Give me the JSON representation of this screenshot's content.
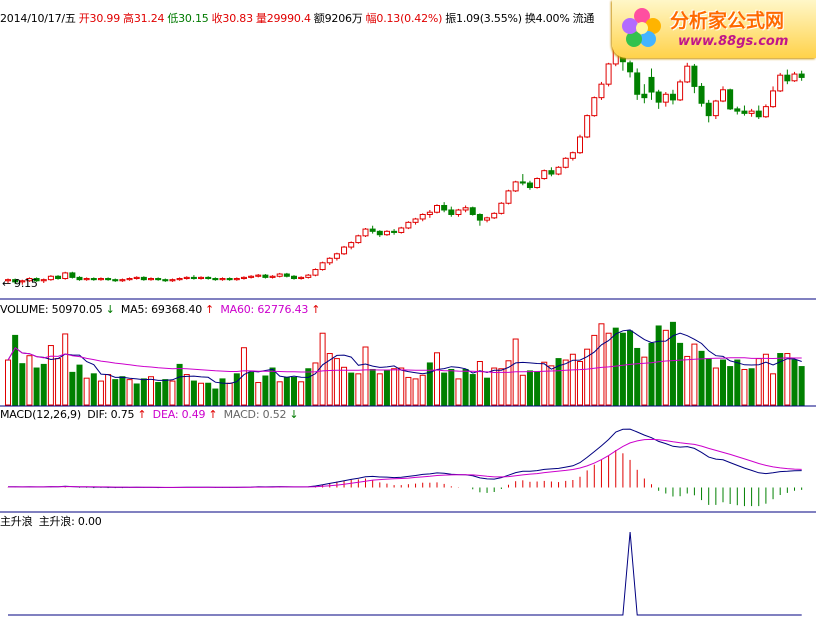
{
  "header": {
    "date": "2014/10/17/五",
    "open": "开30.99",
    "high": "高31.24",
    "low": "低30.15",
    "close": "收30.83",
    "volume": "量29990.4",
    "amount": "额9206万",
    "change": "幅0.13(0.42%)",
    "amplitude": "振1.09(3.55%)",
    "turnover": "换4.00%",
    "float": "流通"
  },
  "volume_header": {
    "vol": "VOLUME: 50970.05",
    "ma5": "MA5: 69368.40",
    "ma60": "MA60: 62776.43"
  },
  "macd_header": {
    "name": "MACD(12,26,9)",
    "dif": "DIF: 0.75",
    "dea": "DEA: 0.49",
    "macd": "MACD: 0.52"
  },
  "indicator_header": {
    "name": "主升浪",
    "value": "主升浪: 0.00"
  },
  "low_marker": "9.15",
  "logo": {
    "title": "分析家公式网",
    "url": "www.88gs.com"
  },
  "colors": {
    "up": "#e00000",
    "down": "#008000",
    "ma5": "#000080",
    "ma60": "#cc00cc",
    "dif": "#000080",
    "dea": "#cc00cc",
    "indicator": "#000080"
  },
  "chart_data": [
    {
      "type": "candlestick",
      "title": "",
      "y_range": [
        8.5,
        32
      ],
      "candles_ohlc": [
        [
          9.5,
          9.7,
          9.3,
          9.6
        ],
        [
          9.6,
          9.7,
          9.2,
          9.4
        ],
        [
          9.4,
          9.6,
          9.15,
          9.5
        ],
        [
          9.5,
          9.8,
          9.4,
          9.7
        ],
        [
          9.7,
          9.8,
          9.4,
          9.5
        ],
        [
          9.5,
          9.7,
          9.3,
          9.6
        ],
        [
          9.6,
          10.0,
          9.5,
          9.9
        ],
        [
          9.9,
          10.0,
          9.6,
          9.7
        ],
        [
          9.7,
          10.3,
          9.6,
          10.2
        ],
        [
          10.2,
          10.3,
          9.7,
          9.8
        ],
        [
          9.8,
          9.9,
          9.5,
          9.6
        ],
        [
          9.6,
          9.8,
          9.5,
          9.7
        ],
        [
          9.7,
          9.8,
          9.5,
          9.6
        ],
        [
          9.6,
          9.8,
          9.5,
          9.7
        ],
        [
          9.7,
          9.8,
          9.5,
          9.6
        ],
        [
          9.6,
          9.7,
          9.4,
          9.5
        ],
        [
          9.5,
          9.7,
          9.4,
          9.6
        ],
        [
          9.6,
          9.8,
          9.5,
          9.7
        ],
        [
          9.7,
          9.9,
          9.6,
          9.8
        ],
        [
          9.8,
          9.9,
          9.5,
          9.6
        ],
        [
          9.6,
          9.8,
          9.5,
          9.7
        ],
        [
          9.7,
          9.8,
          9.5,
          9.6
        ],
        [
          9.6,
          9.7,
          9.4,
          9.5
        ],
        [
          9.5,
          9.7,
          9.4,
          9.6
        ],
        [
          9.6,
          9.8,
          9.5,
          9.7
        ],
        [
          9.7,
          9.9,
          9.6,
          9.8
        ],
        [
          9.8,
          10.0,
          9.6,
          9.7
        ],
        [
          9.7,
          9.9,
          9.6,
          9.8
        ],
        [
          9.8,
          9.9,
          9.6,
          9.7
        ],
        [
          9.7,
          9.8,
          9.5,
          9.6
        ],
        [
          9.6,
          9.8,
          9.5,
          9.7
        ],
        [
          9.7,
          9.8,
          9.5,
          9.6
        ],
        [
          9.6,
          9.8,
          9.5,
          9.7
        ],
        [
          9.7,
          9.9,
          9.6,
          9.8
        ],
        [
          9.8,
          10.0,
          9.7,
          9.9
        ],
        [
          9.9,
          10.1,
          9.8,
          10.0
        ],
        [
          10.0,
          10.1,
          9.7,
          9.8
        ],
        [
          9.8,
          10.0,
          9.7,
          9.9
        ],
        [
          9.9,
          10.2,
          9.8,
          10.1
        ],
        [
          10.1,
          10.2,
          9.8,
          9.9
        ],
        [
          9.9,
          10.0,
          9.6,
          9.7
        ],
        [
          9.7,
          9.9,
          9.6,
          9.8
        ],
        [
          9.8,
          10.1,
          9.7,
          10.0
        ],
        [
          10.0,
          10.6,
          9.9,
          10.5
        ],
        [
          10.5,
          11.2,
          10.4,
          11.1
        ],
        [
          11.1,
          11.6,
          10.9,
          11.5
        ],
        [
          11.5,
          12.0,
          11.3,
          11.9
        ],
        [
          11.9,
          12.6,
          11.8,
          12.5
        ],
        [
          12.5,
          13.0,
          12.3,
          12.9
        ],
        [
          12.9,
          13.6,
          12.8,
          13.5
        ],
        [
          13.5,
          14.2,
          13.4,
          14.1
        ],
        [
          14.1,
          14.4,
          13.7,
          13.9
        ],
        [
          13.9,
          14.0,
          13.4,
          13.6
        ],
        [
          13.6,
          14.0,
          13.5,
          13.9
        ],
        [
          13.9,
          14.1,
          13.6,
          13.8
        ],
        [
          13.8,
          14.3,
          13.7,
          14.2
        ],
        [
          14.2,
          14.8,
          14.1,
          14.7
        ],
        [
          14.7,
          15.1,
          14.5,
          15.0
        ],
        [
          15.0,
          15.5,
          14.8,
          15.4
        ],
        [
          15.4,
          15.8,
          15.1,
          15.6
        ],
        [
          15.6,
          16.3,
          15.5,
          16.2
        ],
        [
          16.2,
          16.5,
          15.6,
          15.8
        ],
        [
          15.8,
          16.1,
          15.2,
          15.4
        ],
        [
          15.4,
          15.9,
          15.2,
          15.8
        ],
        [
          15.8,
          16.2,
          15.6,
          16.0
        ],
        [
          16.0,
          16.1,
          15.3,
          15.4
        ],
        [
          15.4,
          15.5,
          14.4,
          14.9
        ],
        [
          14.9,
          15.2,
          14.7,
          15.1
        ],
        [
          15.1,
          15.6,
          15.0,
          15.5
        ],
        [
          15.5,
          16.5,
          15.4,
          16.4
        ],
        [
          16.4,
          17.6,
          16.3,
          17.5
        ],
        [
          17.5,
          18.4,
          17.4,
          18.3
        ],
        [
          18.3,
          19.0,
          18.0,
          18.2
        ],
        [
          18.2,
          18.4,
          17.6,
          17.8
        ],
        [
          17.8,
          18.7,
          17.7,
          18.6
        ],
        [
          18.6,
          19.4,
          18.5,
          19.3
        ],
        [
          19.3,
          19.6,
          18.8,
          19.0
        ],
        [
          19.0,
          19.7,
          18.9,
          19.6
        ],
        [
          19.6,
          20.5,
          19.5,
          20.4
        ],
        [
          20.4,
          21.0,
          20.2,
          20.9
        ],
        [
          20.9,
          22.5,
          20.8,
          22.3
        ],
        [
          22.3,
          24.3,
          22.2,
          24.2
        ],
        [
          24.2,
          25.9,
          24.1,
          25.8
        ],
        [
          25.8,
          27.2,
          25.6,
          27.0
        ],
        [
          27.0,
          28.9,
          26.8,
          28.8
        ],
        [
          28.8,
          31.4,
          28.6,
          31.2
        ],
        [
          31.2,
          32.0,
          28.2,
          29.0
        ],
        [
          28.9,
          29.1,
          27.6,
          28.1
        ],
        [
          28.0,
          28.4,
          25.6,
          26.1
        ],
        [
          26.1,
          27.0,
          25.3,
          25.8
        ],
        [
          27.6,
          28.4,
          25.6,
          26.3
        ],
        [
          26.3,
          26.5,
          24.8,
          25.4
        ],
        [
          25.4,
          26.3,
          25.0,
          26.1
        ],
        [
          26.1,
          26.5,
          25.2,
          25.6
        ],
        [
          25.6,
          27.4,
          25.5,
          27.2
        ],
        [
          27.2,
          28.9,
          27.1,
          28.6
        ],
        [
          28.6,
          28.8,
          26.2,
          26.8
        ],
        [
          26.8,
          27.1,
          25.0,
          25.3
        ],
        [
          25.3,
          25.6,
          23.6,
          24.2
        ],
        [
          24.2,
          25.6,
          23.9,
          25.5
        ],
        [
          25.5,
          26.8,
          25.4,
          26.5
        ],
        [
          26.5,
          26.6,
          24.7,
          24.8
        ],
        [
          24.8,
          25.0,
          24.3,
          24.6
        ],
        [
          24.6,
          25.1,
          24.2,
          24.4
        ],
        [
          24.4,
          24.8,
          24.1,
          24.6
        ],
        [
          24.6,
          25.1,
          23.9,
          24.1
        ],
        [
          24.1,
          25.2,
          24.0,
          25.0
        ],
        [
          25.0,
          26.8,
          24.9,
          26.4
        ],
        [
          26.4,
          28.0,
          26.3,
          27.8
        ],
        [
          27.8,
          28.3,
          27.0,
          27.3
        ],
        [
          27.3,
          28.1,
          27.2,
          27.9
        ],
        [
          27.9,
          28.2,
          27.3,
          27.6
        ]
      ],
      "annotations": [
        "9.15"
      ]
    },
    {
      "type": "bar",
      "title": "VOLUME",
      "ma_periods": [
        5,
        60
      ],
      "ylim": [
        0,
        120000
      ],
      "values": [
        62000,
        96000,
        57000,
        68000,
        51000,
        56000,
        82000,
        64000,
        98000,
        45000,
        55000,
        37000,
        43000,
        33000,
        42000,
        35000,
        39000,
        35000,
        29000,
        36000,
        39000,
        31000,
        35000,
        33000,
        56000,
        42000,
        33000,
        30000,
        30000,
        22000,
        36000,
        30000,
        43000,
        79000,
        45000,
        31000,
        40000,
        51000,
        32000,
        38000,
        38000,
        32000,
        50000,
        58000,
        99000,
        71000,
        64000,
        52000,
        44000,
        43000,
        80000,
        49000,
        43000,
        48000,
        50000,
        51000,
        38000,
        36000,
        41000,
        58000,
        72000,
        44000,
        49000,
        36000,
        49000,
        42000,
        60000,
        37000,
        51000,
        50000,
        61000,
        91000,
        41000,
        47000,
        46000,
        59000,
        54000,
        64000,
        62000,
        70000,
        60000,
        77000,
        96000,
        112000,
        99000,
        106000,
        99000,
        102000,
        78000,
        66000,
        85000,
        109000,
        103000,
        114000,
        85000,
        67000,
        84000,
        74000,
        64000,
        51000,
        62000,
        53000,
        62000,
        49000,
        50000,
        64000,
        70000,
        43000,
        71000,
        71000,
        62000,
        53000
      ],
      "directions": "uddudduuudduduuddudduddudududddudududdudduduuuuuduududuuuuududdudduduuuuudduuduuuuuuudddduddudduudduddduduuudud"
    },
    {
      "type": "bar+line",
      "title": "MACD(12,26,9)",
      "dif": [
        0.05,
        0.05,
        0.04,
        0.05,
        0.04,
        0.04,
        0.06,
        0.05,
        0.08,
        0.06,
        0.04,
        0.04,
        0.03,
        0.03,
        0.02,
        0.01,
        0.01,
        0.01,
        0.02,
        0.01,
        0.01,
        0.0,
        0.0,
        0.0,
        0.01,
        0.02,
        0.02,
        0.02,
        0.02,
        0.01,
        0.01,
        0.01,
        0.01,
        0.02,
        0.03,
        0.05,
        0.04,
        0.05,
        0.06,
        0.05,
        0.04,
        0.04,
        0.05,
        0.1,
        0.18,
        0.27,
        0.36,
        0.45,
        0.54,
        0.62,
        0.72,
        0.74,
        0.7,
        0.69,
        0.66,
        0.68,
        0.74,
        0.8,
        0.87,
        0.91,
        0.97,
        0.95,
        0.88,
        0.86,
        0.85,
        0.78,
        0.64,
        0.57,
        0.56,
        0.66,
        0.82,
        0.99,
        1.08,
        1.08,
        1.13,
        1.21,
        1.24,
        1.27,
        1.36,
        1.45,
        1.66,
        2.01,
        2.39,
        2.78,
        3.2,
        3.7,
        3.88,
        3.89,
        3.7,
        3.49,
        3.32,
        3.07,
        2.93,
        2.75,
        2.69,
        2.73,
        2.61,
        2.34,
        2.03,
        1.89,
        1.85,
        1.66,
        1.47,
        1.29,
        1.14,
        0.98,
        0.93,
        0.98,
        1.06,
        1.08,
        1.12,
        1.13
      ],
      "dea": [
        0.04,
        0.04,
        0.04,
        0.04,
        0.04,
        0.04,
        0.05,
        0.05,
        0.06,
        0.06,
        0.05,
        0.05,
        0.05,
        0.04,
        0.04,
        0.03,
        0.03,
        0.02,
        0.02,
        0.02,
        0.02,
        0.02,
        0.01,
        0.01,
        0.01,
        0.01,
        0.01,
        0.01,
        0.02,
        0.02,
        0.02,
        0.02,
        0.02,
        0.02,
        0.02,
        0.03,
        0.03,
        0.03,
        0.04,
        0.04,
        0.04,
        0.04,
        0.04,
        0.05,
        0.08,
        0.12,
        0.16,
        0.22,
        0.28,
        0.35,
        0.42,
        0.49,
        0.53,
        0.56,
        0.58,
        0.6,
        0.63,
        0.67,
        0.71,
        0.75,
        0.8,
        0.83,
        0.84,
        0.85,
        0.85,
        0.84,
        0.8,
        0.75,
        0.71,
        0.71,
        0.73,
        0.78,
        0.84,
        0.89,
        0.93,
        0.99,
        1.04,
        1.09,
        1.14,
        1.2,
        1.3,
        1.44,
        1.63,
        1.86,
        2.13,
        2.45,
        2.74,
        2.97,
        3.11,
        3.19,
        3.21,
        3.18,
        3.13,
        3.05,
        2.98,
        2.93,
        2.87,
        2.76,
        2.61,
        2.47,
        2.34,
        2.21,
        2.06,
        1.91,
        1.76,
        1.6,
        1.47,
        1.37,
        1.31,
        1.26,
        1.23,
        1.21
      ],
      "ylim": [
        -1.5,
        4.5
      ]
    },
    {
      "type": "line",
      "title": "主升浪",
      "values_note_indexes_nonzero": [
        87
      ],
      "values": [
        0,
        0,
        0,
        0,
        0,
        0,
        0,
        0,
        0,
        0,
        0,
        0,
        0,
        0,
        0,
        0,
        0,
        0,
        0,
        0,
        0,
        0,
        0,
        0,
        0,
        0,
        0,
        0,
        0,
        0,
        0,
        0,
        0,
        0,
        0,
        0,
        0,
        0,
        0,
        0,
        0,
        0,
        0,
        0,
        0,
        0,
        0,
        0,
        0,
        0,
        0,
        0,
        0,
        0,
        0,
        0,
        0,
        0,
        0,
        0,
        0,
        0,
        0,
        0,
        0,
        0,
        0,
        0,
        0,
        0,
        0,
        0,
        0,
        0,
        0,
        0,
        0,
        0,
        0,
        0,
        0,
        0,
        0,
        0,
        0,
        0,
        0,
        1,
        0,
        0,
        0,
        0,
        0,
        0,
        0,
        0,
        0,
        0,
        0,
        0,
        0,
        0,
        0,
        0,
        0,
        0,
        0,
        0,
        0,
        0,
        0,
        0
      ],
      "ylim": [
        0,
        1
      ]
    }
  ]
}
